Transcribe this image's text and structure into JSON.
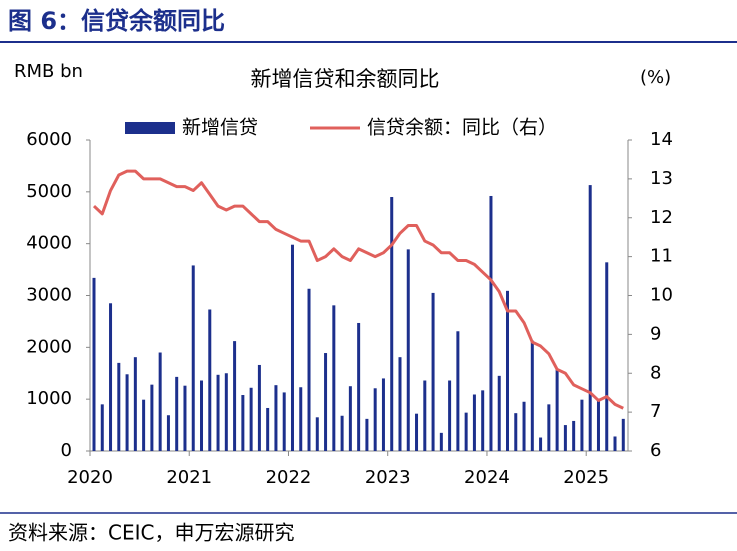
{
  "header": {
    "title": "图 6：信贷余额同比"
  },
  "footer": {
    "source": "资料来源：CEIC，申万宏源研究"
  },
  "chart_data": {
    "type": "bar+line",
    "title": "新增信贷和余额同比",
    "y_label": "RMB bn",
    "y2_label": "(%)",
    "categories": [
      "2020",
      null,
      null,
      null,
      null,
      null,
      null,
      null,
      null,
      null,
      null,
      null,
      "2021",
      null,
      null,
      null,
      null,
      null,
      null,
      null,
      null,
      null,
      null,
      null,
      "2022",
      null,
      null,
      null,
      null,
      null,
      null,
      null,
      null,
      null,
      null,
      null,
      "2023",
      null,
      null,
      null,
      null,
      null,
      null,
      null,
      null,
      null,
      null,
      null,
      "2024",
      null,
      null,
      null,
      null,
      null,
      null,
      null,
      null,
      null,
      null,
      null,
      "2025",
      null,
      null,
      null,
      null
    ],
    "ylim": [
      0,
      6000
    ],
    "yticks": [
      0,
      1000,
      2000,
      3000,
      4000,
      5000,
      6000
    ],
    "y2lim": [
      6,
      14
    ],
    "y2ticks": [
      6,
      7,
      8,
      9,
      10,
      11,
      12,
      13,
      14
    ],
    "legend": "top",
    "series": [
      {
        "name": "新增信贷",
        "type": "bar",
        "color": "#1c2f8c",
        "values": [
          3340,
          900,
          2850,
          1700,
          1480,
          1810,
          990,
          1280,
          1900,
          690,
          1430,
          1260,
          3580,
          1360,
          2730,
          1470,
          1500,
          2120,
          1080,
          1220,
          1660,
          830,
          1270,
          1130,
          3980,
          1230,
          3130,
          650,
          1890,
          2810,
          680,
          1250,
          2470,
          620,
          1210,
          1400,
          4900,
          1810,
          3890,
          720,
          1360,
          3050,
          350,
          1360,
          2310,
          740,
          1090,
          1170,
          4920,
          1450,
          3090,
          730,
          950,
          2130,
          260,
          900,
          1590,
          500,
          580,
          990,
          5130,
          1010,
          3640,
          280,
          620
        ]
      },
      {
        "name": "信贷余额：同比（右）",
        "type": "line",
        "axis": "y2",
        "color": "#e0605c",
        "values": [
          12.3,
          12.1,
          12.7,
          13.1,
          13.2,
          13.2,
          13.0,
          13.0,
          13.0,
          12.9,
          12.8,
          12.8,
          12.7,
          12.9,
          12.6,
          12.3,
          12.2,
          12.3,
          12.3,
          12.1,
          11.9,
          11.9,
          11.7,
          11.6,
          11.5,
          11.4,
          11.4,
          10.9,
          11.0,
          11.2,
          11.0,
          10.9,
          11.2,
          11.1,
          11.0,
          11.1,
          11.3,
          11.6,
          11.8,
          11.8,
          11.4,
          11.3,
          11.1,
          11.1,
          10.9,
          10.9,
          10.8,
          10.6,
          10.4,
          10.1,
          9.6,
          9.6,
          9.3,
          8.8,
          8.7,
          8.5,
          8.1,
          8.0,
          7.7,
          7.6,
          7.5,
          7.3,
          7.4,
          7.2,
          7.1
        ]
      }
    ]
  }
}
